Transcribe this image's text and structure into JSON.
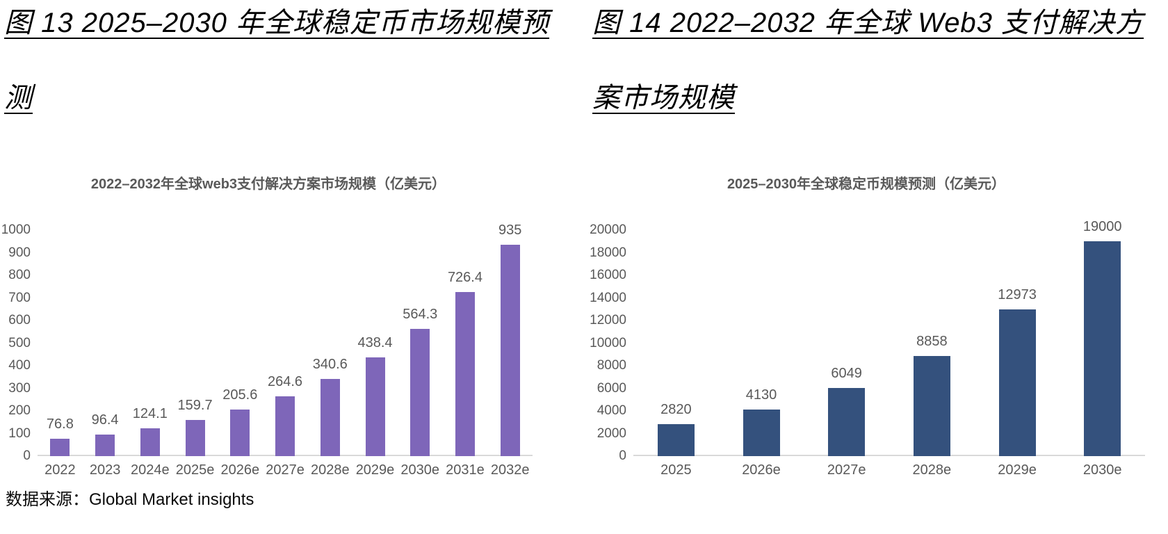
{
  "captions": {
    "fig13_line1": "图 13 2025–2030 年全球稳定币市场规模预",
    "fig13_line2": "测",
    "fig14_line1": "图 14 2022–2032 年全球 Web3 支付解决方",
    "fig14_line2": "案市场规模"
  },
  "source_note": "数据来源：Global Market insights",
  "colors": {
    "web3_bar": "#7E66B9",
    "stablecoin_bar": "#34517D",
    "chart_text": "#595959",
    "axis_line": "#D9D9D9",
    "caption_text": "#000000"
  },
  "chart_data": [
    {
      "id": "web3",
      "type": "bar",
      "title": "2022–2032年全球web3支付解决方案市场规模（亿美元）",
      "categories": [
        "2022",
        "2023",
        "2024e",
        "2025e",
        "2026e",
        "2027e",
        "2028e",
        "2029e",
        "2030e",
        "2031e",
        "2032e"
      ],
      "values": [
        76.8,
        96.4,
        124.1,
        159.7,
        205.6,
        264.6,
        340.6,
        438.4,
        564.3,
        726.4,
        935
      ],
      "value_labels": [
        "76.8",
        "96.4",
        "124.1",
        "159.7",
        "205.6",
        "264.6",
        "340.6",
        "438.4",
        "564.3",
        "726.4",
        "935"
      ],
      "xlabel": "",
      "ylabel": "",
      "ylim": [
        0,
        1000
      ],
      "yticks": [
        0,
        100,
        200,
        300,
        400,
        500,
        600,
        700,
        800,
        900,
        1000
      ],
      "bar_color": "#7E66B9",
      "grid": false,
      "legend": "none"
    },
    {
      "id": "stablecoin",
      "type": "bar",
      "title": "2025–2030年全球稳定币规模预测（亿美元）",
      "categories": [
        "2025",
        "2026e",
        "2027e",
        "2028e",
        "2029e",
        "2030e"
      ],
      "values": [
        2820,
        4130,
        6049,
        8858,
        12973,
        19000
      ],
      "value_labels": [
        "2820",
        "4130",
        "6049",
        "8858",
        "12973",
        "19000"
      ],
      "xlabel": "",
      "ylabel": "",
      "ylim": [
        0,
        20000
      ],
      "yticks": [
        0,
        2000,
        4000,
        6000,
        8000,
        10000,
        12000,
        14000,
        16000,
        18000,
        20000
      ],
      "bar_color": "#34517D",
      "grid": false,
      "legend": "none"
    }
  ]
}
